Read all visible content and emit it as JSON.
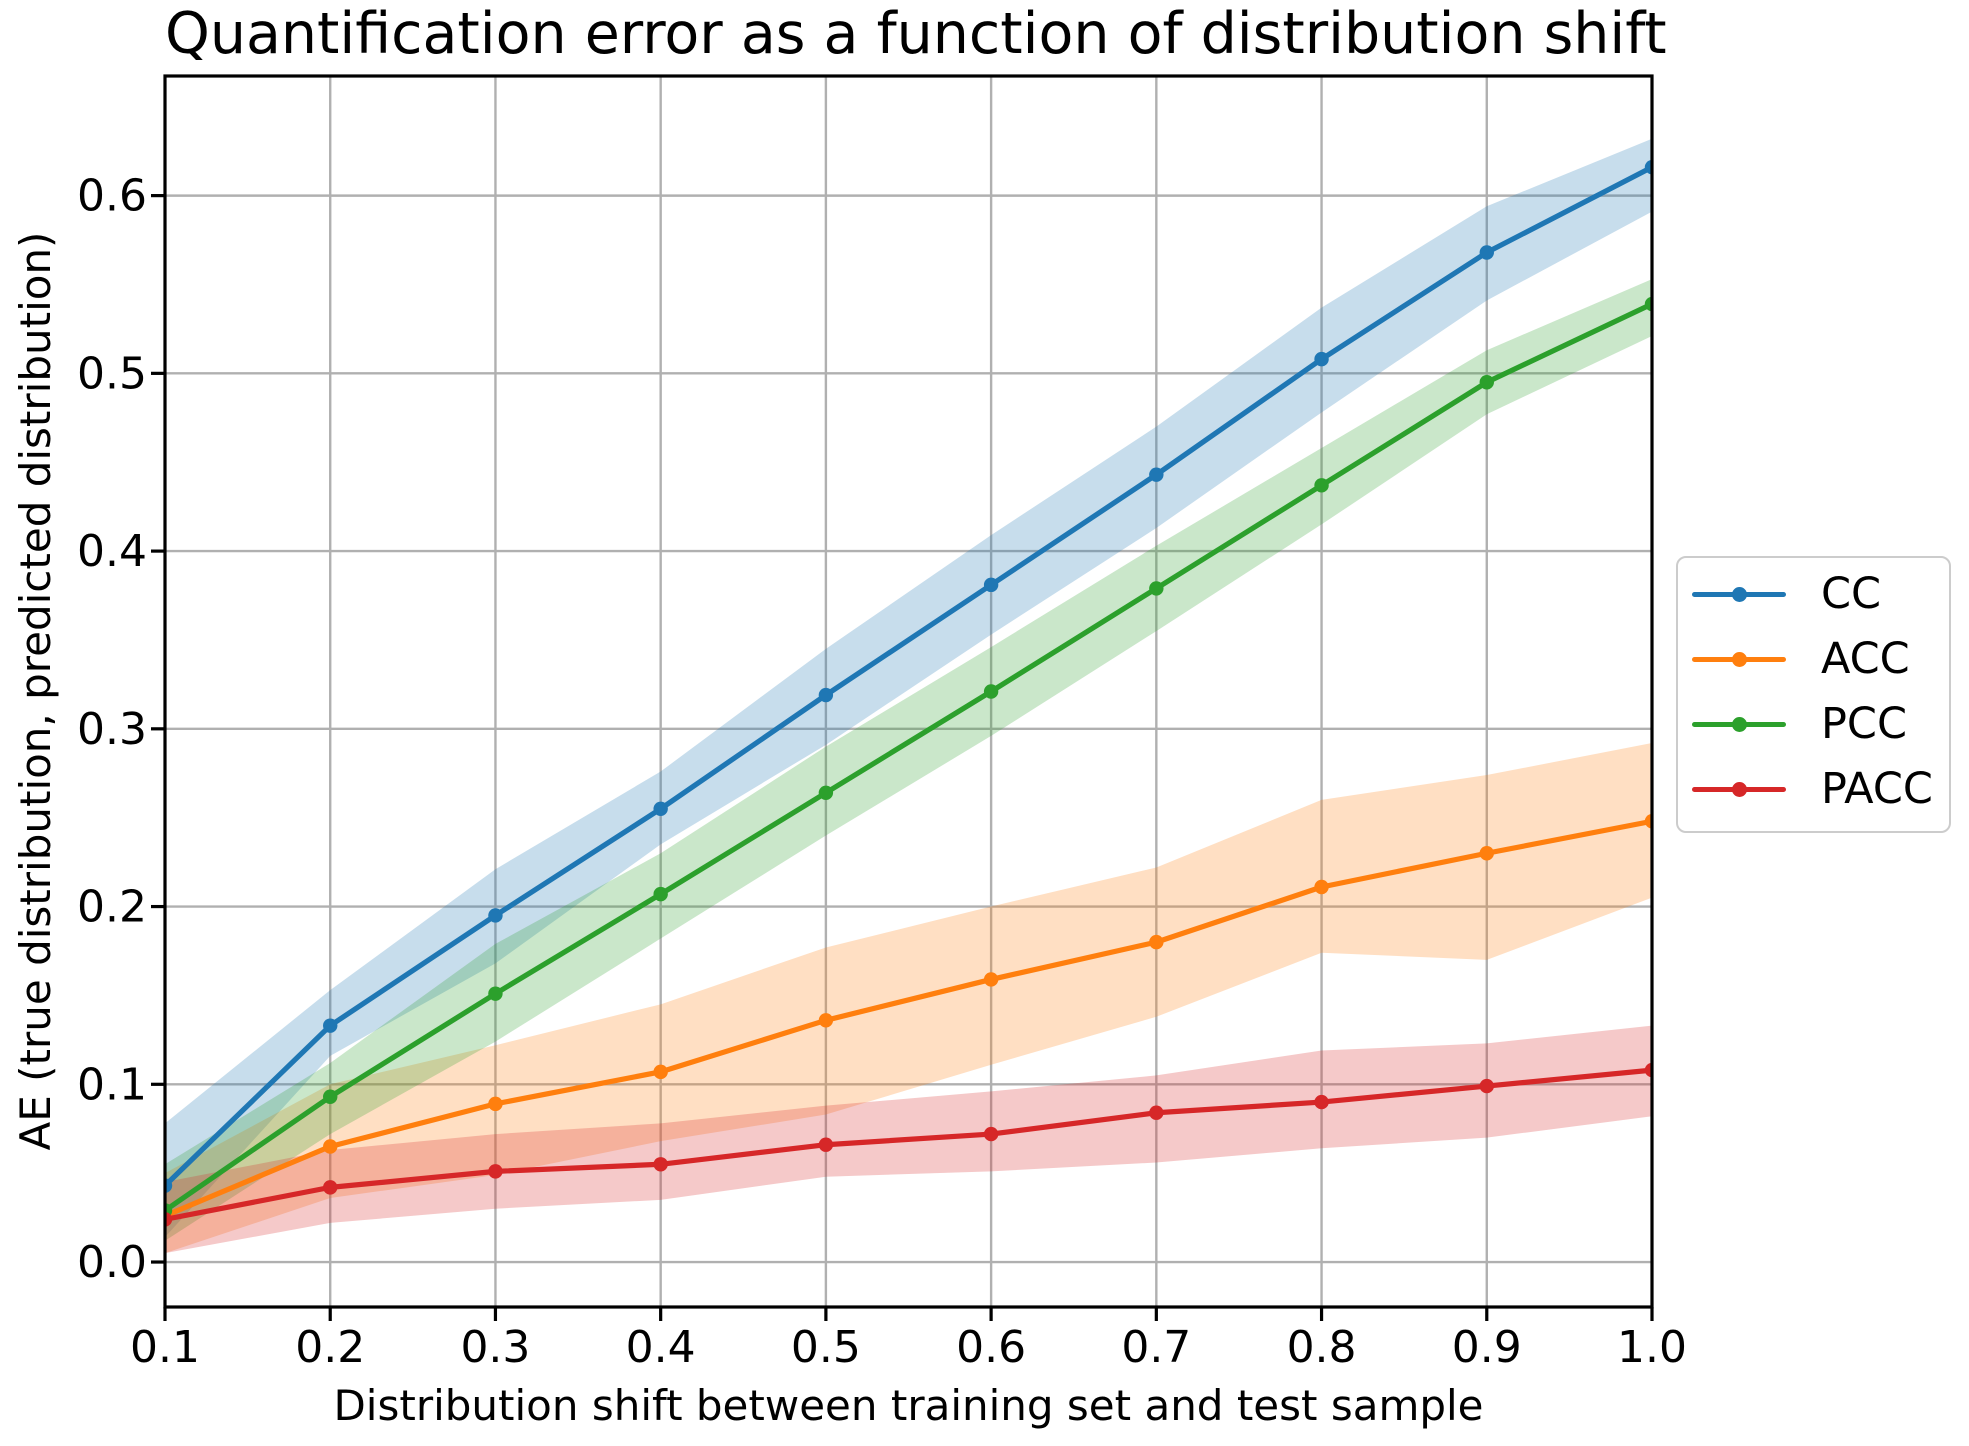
{
  "chart_data": {
    "type": "line",
    "title": "Quantification error as a function of distribution shift",
    "xlabel": "Distribution shift between training set and test sample",
    "ylabel": "AE (true distribution, predicted distribution)",
    "x": [
      0.1,
      0.2,
      0.3,
      0.4,
      0.5,
      0.6,
      0.7,
      0.8,
      0.9,
      1.0
    ],
    "xtick_labels": [
      "0.1",
      "0.2",
      "0.3",
      "0.4",
      "0.5",
      "0.6",
      "0.7",
      "0.8",
      "0.9",
      "1.0"
    ],
    "ytick_values": [
      0.0,
      0.1,
      0.2,
      0.3,
      0.4,
      0.5,
      0.6
    ],
    "ytick_labels": [
      "0.0",
      "0.1",
      "0.2",
      "0.3",
      "0.4",
      "0.5",
      "0.6"
    ],
    "xlim": [
      0.1,
      1.0
    ],
    "ylim": [
      -0.0253,
      0.6673
    ],
    "grid": true,
    "grid_color": "#b0b0b0",
    "spine_color": "#000000",
    "band_alpha": 0.25,
    "legend": {
      "position": "right-of-plot",
      "entries": [
        "CC",
        "ACC",
        "PCC",
        "PACC"
      ]
    },
    "series": [
      {
        "name": "CC",
        "color": "#1f77b4",
        "values": [
          0.043,
          0.133,
          0.195,
          0.255,
          0.319,
          0.381,
          0.443,
          0.508,
          0.568,
          0.616
        ],
        "band_low": [
          0.014,
          0.116,
          0.168,
          0.235,
          0.291,
          0.353,
          0.413,
          0.478,
          0.541,
          0.591
        ],
        "band_high": [
          0.078,
          0.153,
          0.221,
          0.276,
          0.345,
          0.409,
          0.47,
          0.537,
          0.594,
          0.632
        ]
      },
      {
        "name": "ACC",
        "color": "#ff7f0e",
        "values": [
          0.026,
          0.065,
          0.089,
          0.107,
          0.136,
          0.159,
          0.18,
          0.211,
          0.23,
          0.248
        ],
        "band_low": [
          0.005,
          0.036,
          0.049,
          0.068,
          0.083,
          0.111,
          0.138,
          0.174,
          0.17,
          0.205
        ],
        "band_high": [
          0.05,
          0.1,
          0.122,
          0.145,
          0.177,
          0.2,
          0.222,
          0.26,
          0.274,
          0.292
        ]
      },
      {
        "name": "PCC",
        "color": "#2ca02c",
        "values": [
          0.029,
          0.093,
          0.151,
          0.207,
          0.264,
          0.321,
          0.379,
          0.437,
          0.495,
          0.539
        ],
        "band_low": [
          0.012,
          0.072,
          0.124,
          0.182,
          0.24,
          0.296,
          0.355,
          0.415,
          0.477,
          0.521
        ],
        "band_high": [
          0.055,
          0.112,
          0.179,
          0.23,
          0.29,
          0.346,
          0.403,
          0.458,
          0.513,
          0.553
        ]
      },
      {
        "name": "PACC",
        "color": "#d62728",
        "values": [
          0.024,
          0.042,
          0.051,
          0.055,
          0.066,
          0.072,
          0.084,
          0.09,
          0.099,
          0.108
        ],
        "band_low": [
          0.005,
          0.022,
          0.03,
          0.035,
          0.048,
          0.051,
          0.056,
          0.064,
          0.07,
          0.082
        ],
        "band_high": [
          0.045,
          0.063,
          0.072,
          0.078,
          0.088,
          0.096,
          0.105,
          0.119,
          0.123,
          0.133
        ]
      }
    ]
  }
}
